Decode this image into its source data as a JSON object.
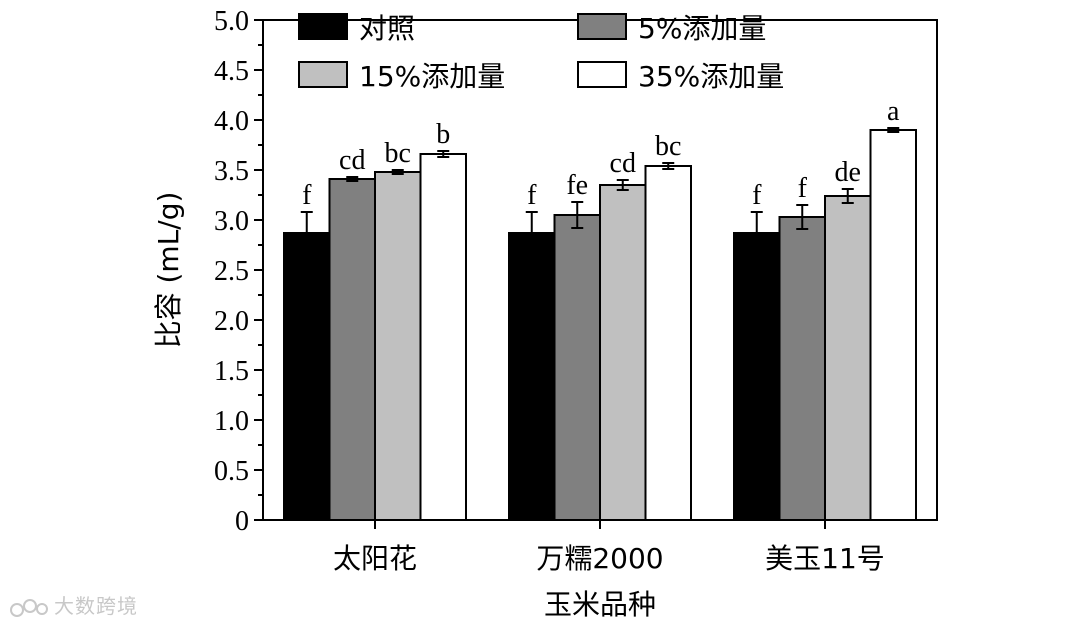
{
  "watermark": {
    "text": "大数跨境",
    "icon": "logo-icon"
  },
  "chart_data": {
    "type": "bar",
    "xlabel": "玉米品种",
    "ylabel": "比容 (mL/g)",
    "ylim": [
      0,
      5.0
    ],
    "yticks": [
      "0",
      "0.5",
      "1.0",
      "1.5",
      "2.0",
      "2.5",
      "3.0",
      "3.5",
      "4.0",
      "4.5",
      "5.0"
    ],
    "categories": [
      "太阳花",
      "万糯2000",
      "美玉11号"
    ],
    "legend_position": "top",
    "grid": false,
    "series": [
      {
        "name": "对照",
        "color": "#000000",
        "values": [
          2.87,
          2.87,
          2.87
        ],
        "errors": [
          0.21,
          0.21,
          0.21
        ],
        "labels": [
          "f",
          "f",
          "f"
        ]
      },
      {
        "name": "5%添加量",
        "color": "#808080",
        "values": [
          3.41,
          3.05,
          3.03
        ],
        "errors": [
          0.02,
          0.13,
          0.12
        ],
        "labels": [
          "cd",
          "fe",
          "f"
        ]
      },
      {
        "name": "15%添加量",
        "color": "#c0c0c0",
        "values": [
          3.48,
          3.35,
          3.24
        ],
        "errors": [
          0.02,
          0.05,
          0.07
        ],
        "labels": [
          "bc",
          "cd",
          "de"
        ]
      },
      {
        "name": "35%添加量",
        "color": "#ffffff",
        "values": [
          3.66,
          3.54,
          3.9
        ],
        "errors": [
          0.03,
          0.03,
          0.02
        ],
        "labels": [
          "b",
          "bc",
          "a"
        ]
      }
    ]
  }
}
